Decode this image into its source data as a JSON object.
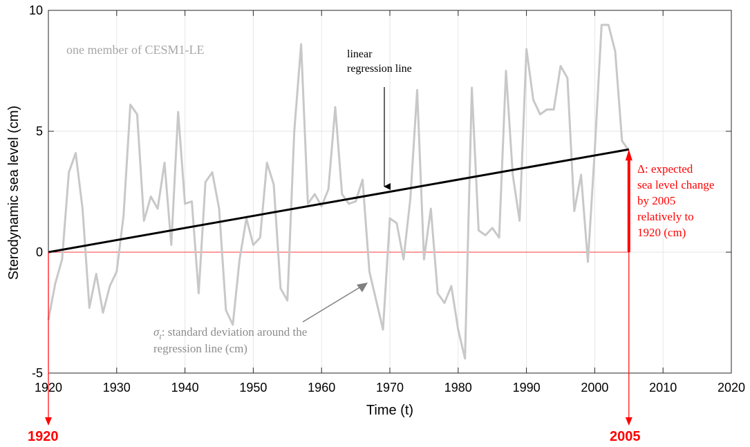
{
  "chart_data": {
    "type": "line",
    "title": "",
    "xlabel": "Time (t)",
    "ylabel": "Sterodynamic sea level (cm)",
    "xlim": [
      1920,
      2020
    ],
    "ylim": [
      -5,
      10
    ],
    "xticks": [
      1920,
      1930,
      1940,
      1950,
      1960,
      1970,
      1980,
      1990,
      2000,
      2010,
      2020
    ],
    "yticks": [
      -5,
      0,
      5,
      10
    ],
    "grid": true,
    "colors": {
      "series": "#c8c8c8",
      "regression": "#000000",
      "accent": "#ff0000",
      "sigma_arrow": "#808080"
    },
    "series": [
      {
        "x": [
          1920,
          1921,
          1922,
          1923,
          1924,
          1925,
          1926,
          1927,
          1928,
          1929,
          1930,
          1931,
          1932,
          1933,
          1934,
          1935,
          1936,
          1937,
          1938,
          1939,
          1940,
          1941,
          1942,
          1943,
          1944,
          1945,
          1946,
          1947,
          1948,
          1949,
          1950,
          1951,
          1952,
          1953,
          1954,
          1955,
          1956,
          1957,
          1958,
          1959,
          1960,
          1961,
          1962,
          1963,
          1964,
          1965,
          1966,
          1967,
          1968,
          1969,
          1970,
          1971,
          1972,
          1973,
          1974,
          1975,
          1976,
          1977,
          1978,
          1979,
          1980,
          1981,
          1982,
          1983,
          1984,
          1985,
          1986,
          1987,
          1988,
          1989,
          1990,
          1991,
          1992,
          1993,
          1994,
          1995,
          1996,
          1997,
          1998,
          1999,
          2000,
          2001,
          2002,
          2003,
          2004,
          2005
        ],
        "values": [
          -2.8,
          -1.3,
          -0.3,
          3.3,
          4.1,
          1.8,
          -2.3,
          -0.9,
          -2.5,
          -1.4,
          -0.8,
          1.5,
          6.1,
          5.7,
          1.3,
          2.3,
          1.8,
          3.7,
          0.3,
          5.8,
          2.0,
          2.1,
          -1.7,
          2.9,
          3.3,
          1.8,
          -2.4,
          -3.0,
          -0.3,
          1.4,
          0.3,
          0.6,
          3.7,
          2.8,
          -1.5,
          -2.0,
          5.0,
          8.6,
          2.0,
          2.4,
          1.9,
          2.6,
          6.0,
          2.4,
          2.0,
          2.1,
          3.0,
          -0.8,
          -2.0,
          -3.2,
          1.4,
          1.2,
          -0.3,
          2.2,
          6.7,
          -0.3,
          1.8,
          -1.7,
          -2.1,
          -1.4,
          -3.2,
          -4.4,
          6.8,
          0.9,
          0.7,
          1.0,
          0.6,
          7.5,
          3.2,
          1.3,
          8.4,
          6.3,
          5.7,
          5.9,
          5.9,
          7.7,
          7.2,
          1.7,
          3.2,
          -0.4,
          4.2,
          9.4,
          9.4,
          8.3,
          4.6,
          4.2
        ]
      }
    ],
    "regression": {
      "x": [
        1920,
        2005
      ],
      "values": [
        0,
        4.25
      ]
    },
    "baseline": {
      "x": [
        1920,
        2005
      ],
      "value": 0
    },
    "annotations": {
      "member_label": "one member of CESM1-LE",
      "regression_label_1": "linear",
      "regression_label_2": "regression line",
      "sigma_symbol": "σ",
      "sigma_sub": "t",
      "sigma_label_1": ": standard deviation around the",
      "sigma_label_2": "regression line (cm)",
      "delta_label": [
        "Δ: expected",
        "sea level change",
        "by 2005",
        "relatively to",
        "1920 (cm)"
      ],
      "start_year_label": "1920",
      "end_year_label": "2005"
    }
  }
}
